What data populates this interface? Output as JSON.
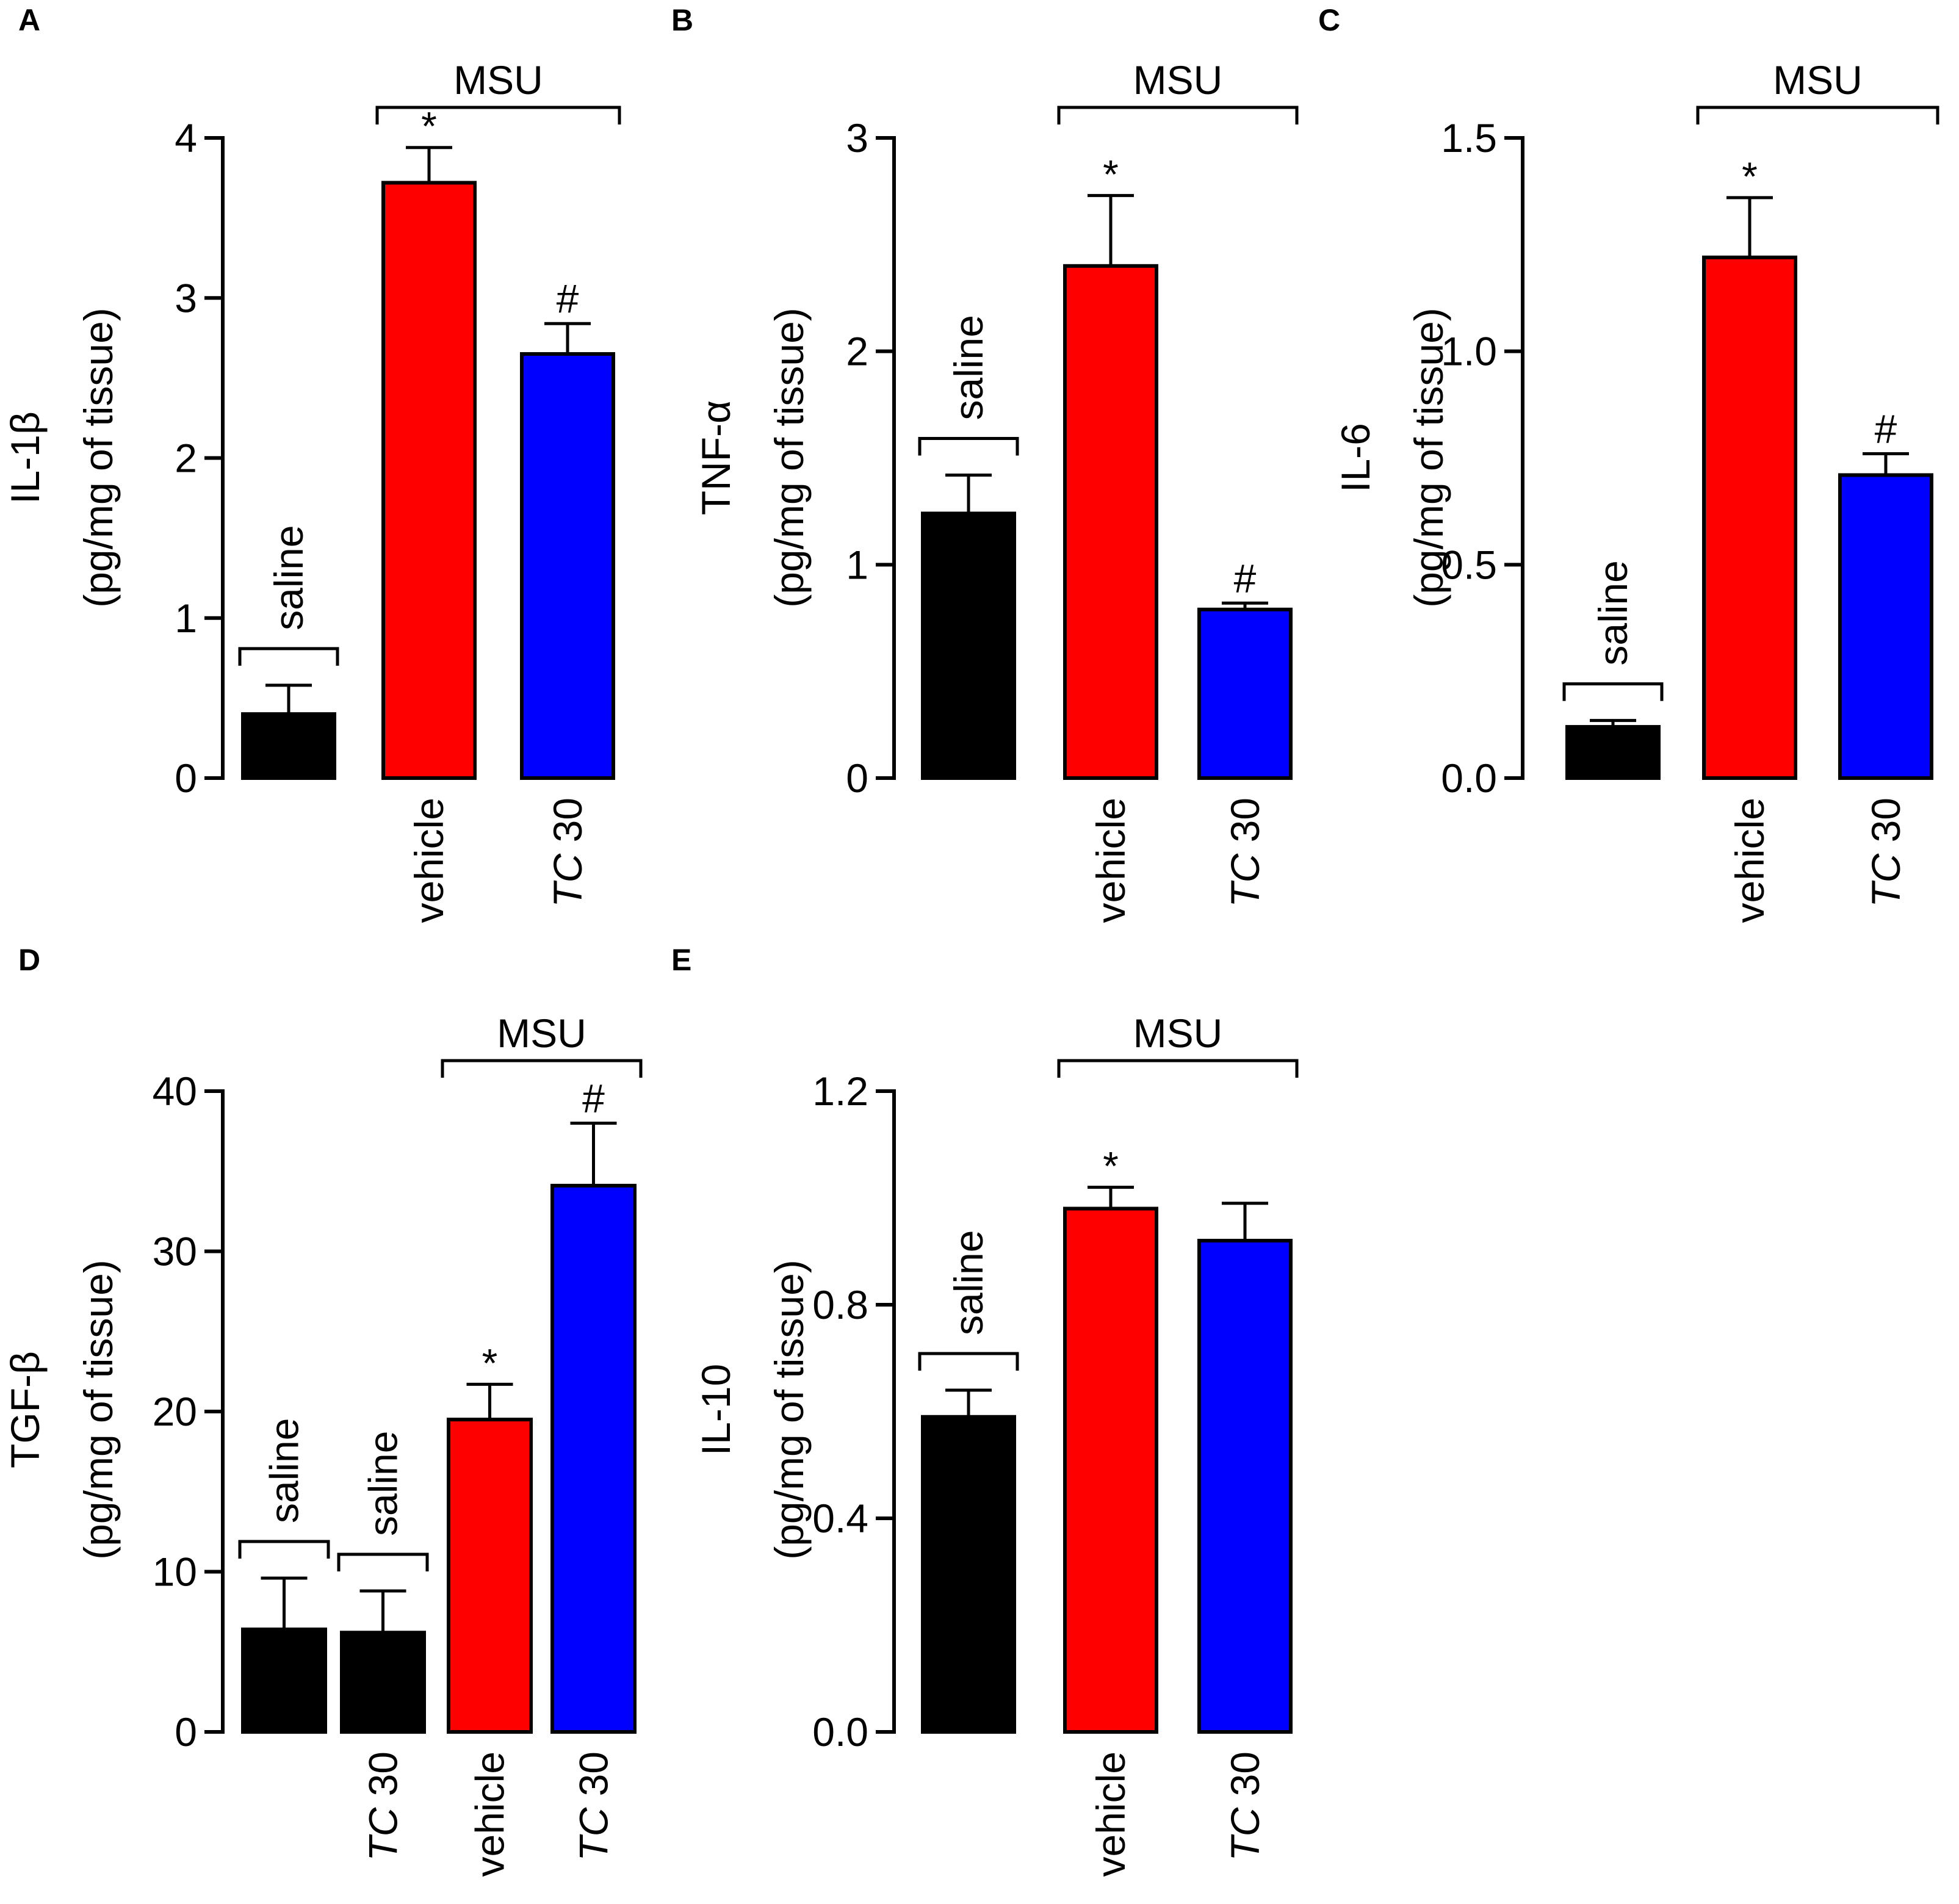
{
  "colors": {
    "saline": "#000000",
    "vehicle": "#ff0000",
    "tc30": "#0000ff"
  },
  "chart_data": [
    {
      "type": "bar",
      "panel": "A",
      "ylabel_line1": "IL-1β",
      "ylabel_line2": "(pg/mg of tissue)",
      "ylim": [
        0,
        4
      ],
      "yticks": [
        0,
        1,
        2,
        3,
        4
      ],
      "ytick_labels": [
        "0",
        "1",
        "2",
        "3",
        "4"
      ],
      "bars": [
        {
          "label": "",
          "value": 0.4,
          "error": 0.18,
          "color": "#000000",
          "sig": ""
        },
        {
          "label": "vehicle",
          "value": 3.72,
          "error": 0.22,
          "color": "#ff0000",
          "sig": "*"
        },
        {
          "label": "TC 30",
          "value": 2.65,
          "error": 0.19,
          "color": "#0000ff",
          "sig": "#"
        }
      ],
      "group_brackets": [
        {
          "label": "MSU",
          "from": 1,
          "to": 2
        }
      ],
      "side_brackets": [
        {
          "label": "saline",
          "bar": 0
        }
      ]
    },
    {
      "type": "bar",
      "panel": "B",
      "ylabel_line1": "TNF-α",
      "ylabel_line2": "(pg/mg of tissue)",
      "ylim": [
        0,
        3
      ],
      "yticks": [
        0,
        1,
        2,
        3
      ],
      "ytick_labels": [
        "0",
        "1",
        "2",
        "3"
      ],
      "bars": [
        {
          "label": "",
          "value": 1.24,
          "error": 0.18,
          "color": "#000000",
          "sig": ""
        },
        {
          "label": "vehicle",
          "value": 2.4,
          "error": 0.33,
          "color": "#ff0000",
          "sig": "*"
        },
        {
          "label": "TC 30",
          "value": 0.79,
          "error": 0.03,
          "color": "#0000ff",
          "sig": "#"
        }
      ],
      "group_brackets": [
        {
          "label": "MSU",
          "from": 1,
          "to": 2
        }
      ],
      "side_brackets": [
        {
          "label": "saline",
          "bar": 0
        }
      ]
    },
    {
      "type": "bar",
      "panel": "C",
      "ylabel_line1": "IL-6",
      "ylabel_line2": "(pg/mg of tissue)",
      "ylim": [
        0,
        1.5
      ],
      "yticks": [
        0,
        0.5,
        1.0,
        1.5
      ],
      "ytick_labels": [
        "0.0",
        "0.5",
        "1.0",
        "1.5"
      ],
      "bars": [
        {
          "label": "",
          "value": 0.12,
          "error": 0.015,
          "color": "#000000",
          "sig": ""
        },
        {
          "label": "vehicle",
          "value": 1.22,
          "error": 0.14,
          "color": "#ff0000",
          "sig": "*"
        },
        {
          "label": "TC 30",
          "value": 0.71,
          "error": 0.05,
          "color": "#0000ff",
          "sig": "#"
        }
      ],
      "group_brackets": [
        {
          "label": "MSU",
          "from": 1,
          "to": 2
        }
      ],
      "side_brackets": [
        {
          "label": "saline",
          "bar": 0
        }
      ]
    },
    {
      "type": "bar",
      "panel": "D",
      "ylabel_line1": "TGF-β",
      "ylabel_line2": "(pg/mg of tissue)",
      "ylim": [
        0,
        40
      ],
      "yticks": [
        0,
        10,
        20,
        30,
        40
      ],
      "ytick_labels": [
        "0",
        "10",
        "20",
        "30",
        "40"
      ],
      "bars": [
        {
          "label": "",
          "value": 6.4,
          "error": 3.2,
          "color": "#000000",
          "sig": ""
        },
        {
          "label": "TC 30",
          "value": 6.2,
          "error": 2.6,
          "color": "#000000",
          "sig": ""
        },
        {
          "label": "vehicle",
          "value": 19.5,
          "error": 2.2,
          "color": "#ff0000",
          "sig": "*"
        },
        {
          "label": "TC 30",
          "value": 34.1,
          "error": 3.9,
          "color": "#0000ff",
          "sig": "#"
        }
      ],
      "group_brackets": [
        {
          "label": "MSU",
          "from": 2,
          "to": 3
        }
      ],
      "side_brackets": [
        {
          "label": "saline",
          "bar": 0
        },
        {
          "label": "saline",
          "bar": 1
        }
      ]
    },
    {
      "type": "bar",
      "panel": "E",
      "ylabel_line1": "IL-10",
      "ylabel_line2": "(pg/mg of tissue)",
      "ylim": [
        0,
        1.2
      ],
      "yticks": [
        0,
        0.4,
        0.8,
        1.2
      ],
      "ytick_labels": [
        "0.0",
        "0.4",
        "0.8",
        "1.2"
      ],
      "bars": [
        {
          "label": "",
          "value": 0.59,
          "error": 0.05,
          "color": "#000000",
          "sig": ""
        },
        {
          "label": "vehicle",
          "value": 0.98,
          "error": 0.04,
          "color": "#ff0000",
          "sig": "*"
        },
        {
          "label": "TC 30",
          "value": 0.92,
          "error": 0.07,
          "color": "#0000ff",
          "sig": ""
        }
      ],
      "group_brackets": [
        {
          "label": "MSU",
          "from": 1,
          "to": 2
        }
      ],
      "side_brackets": [
        {
          "label": "saline",
          "bar": 0
        }
      ]
    }
  ]
}
